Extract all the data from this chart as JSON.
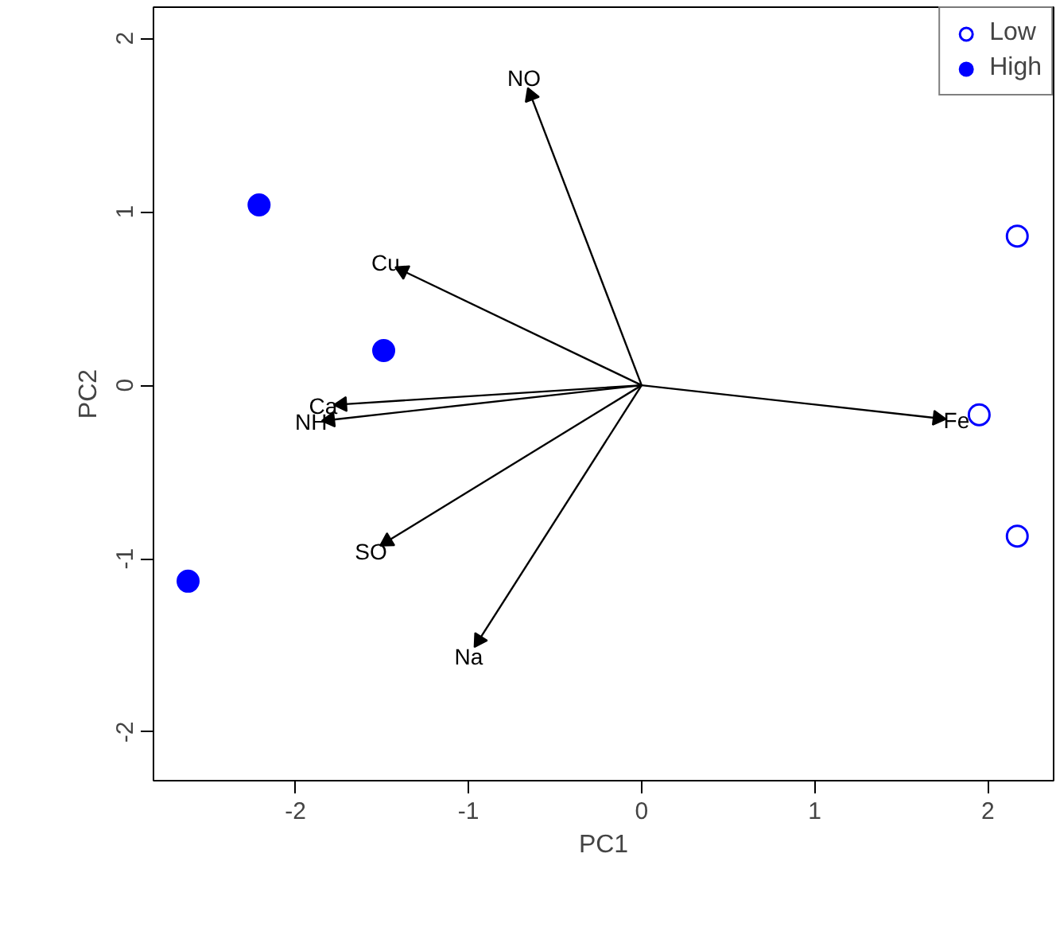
{
  "chart_data": {
    "type": "scatter",
    "xlabel": "PC1",
    "ylabel": "PC2",
    "annotations": [
      {
        "text": "NO",
        "x": -0.64,
        "y": 1.67
      },
      {
        "text": "Cu",
        "x": -1.38,
        "y": 0.66
      },
      {
        "text": "Ca",
        "x": -1.73,
        "y": -0.11
      },
      {
        "text": "NH",
        "x": -1.8,
        "y": -0.2
      },
      {
        "text": "SO",
        "x": -1.47,
        "y": -0.9
      },
      {
        "text": "Na",
        "x": -0.94,
        "y": -1.47
      },
      {
        "text": "Fe",
        "x": 1.71,
        "y": -0.19
      }
    ],
    "xlim": [
      -2.82,
      2.38
    ],
    "ylim": [
      -2.28,
      2.18
    ],
    "xticks": [
      -2,
      -1,
      0,
      1,
      2
    ],
    "yticks": [
      -2,
      -1,
      0,
      1,
      2
    ],
    "grid": false,
    "legend": "top right",
    "series": [
      {
        "name": "Low",
        "marker": "circle_open",
        "color": "#0000ff",
        "x": [
          2.17,
          1.95,
          2.17
        ],
        "values": [
          0.86,
          -0.17,
          -0.87
        ]
      },
      {
        "name": "High",
        "marker": "circle",
        "color": "#0000ff",
        "x": [
          -2.21,
          -1.49,
          -2.62
        ],
        "values": [
          1.04,
          0.2,
          -1.13
        ]
      },
      {
        "marker": "triangle",
        "color": "#000000",
        "x": [
          -0.64,
          -1.38,
          -1.73,
          -1.8,
          -1.47,
          -0.94,
          1.71
        ],
        "values": [
          1.67,
          0.66,
          -0.11,
          -0.2,
          -0.9,
          -1.47,
          -0.19
        ]
      }
    ]
  }
}
